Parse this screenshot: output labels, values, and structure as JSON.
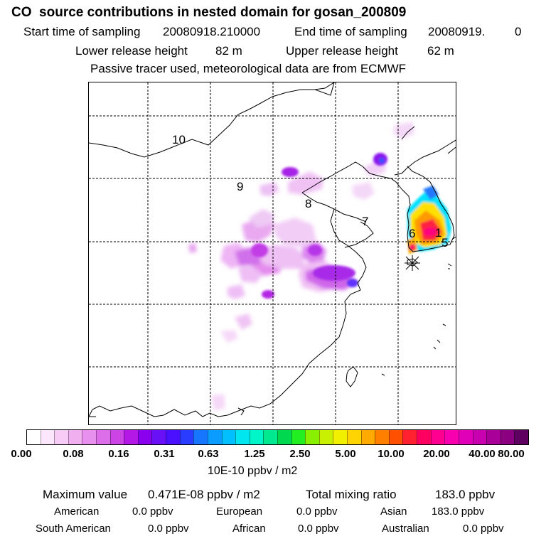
{
  "header": {
    "title": "CO  source contributions in nested domain for gosan_200809",
    "start_label": "Start time of sampling",
    "start_value": "20080918.210000",
    "end_label": "End time of sampling",
    "end_value": "20080919.",
    "end_value_suffix": "0",
    "lower_label": "Lower release height",
    "lower_value": "82 m",
    "upper_label": "Upper release height",
    "upper_value": "62 m",
    "note": "Passive tracer used, meteorological data are from ECMWF"
  },
  "map": {
    "region_labels": [
      "10",
      "9",
      "8",
      "7",
      "6",
      "1",
      "5"
    ],
    "receptor_marker": "asterisk"
  },
  "colorbar": {
    "tick_labels": [
      "0.00",
      "0.08",
      "0.16",
      "0.31",
      "0.63",
      "1.25",
      "2.50",
      "5.00",
      "10.00",
      "20.00",
      "40.00",
      "80.00"
    ],
    "unit": "10E-10 ppbv / m2",
    "colors": [
      "#ffffff",
      "#fbe6fb",
      "#f6ccf6",
      "#f0b0f0",
      "#e890ee",
      "#dd6ee9",
      "#cc44e4",
      "#b318e6",
      "#8a00ee",
      "#6a10f6",
      "#4a10ff",
      "#2a3cff",
      "#1676ff",
      "#0a9cff",
      "#00c0ff",
      "#00e6f0",
      "#00f5c8",
      "#00e890",
      "#00d850",
      "#22ee22",
      "#88f000",
      "#c8f000",
      "#f0f000",
      "#ffd400",
      "#ffaa00",
      "#ff8000",
      "#ff5000",
      "#ff2030",
      "#ff0060",
      "#ff0090",
      "#f800b0",
      "#e000b8",
      "#c800b0",
      "#a80098",
      "#8a0080",
      "#5e0060"
    ]
  },
  "footer": {
    "max_label": "Maximum value",
    "max_value": "0.471E-08 ppbv / m2",
    "total_label": "Total mixing ratio",
    "total_value": "183.0 ppbv",
    "american_label": "American",
    "american_value": "0.0 ppbv",
    "european_label": "European",
    "european_value": "0.0 ppbv",
    "asian_label": "Asian",
    "asian_value": "183.0 ppbv",
    "south_american_label": "South American",
    "south_american_value": "0.0 ppbv",
    "african_label": "African",
    "african_value": "0.0 ppbv",
    "australian_label": "Australian",
    "australian_value": "0.0 ppbv"
  }
}
